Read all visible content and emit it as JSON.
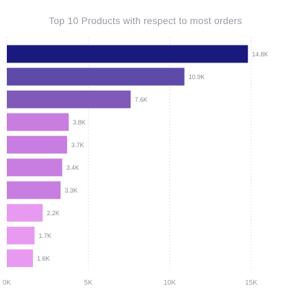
{
  "chart_data": {
    "type": "bar",
    "orientation": "horizontal",
    "title": "Top 10 Products with respect to most orders",
    "xlabel": "",
    "ylabel": "",
    "xlim": [
      0,
      15000
    ],
    "x_ticks": [
      {
        "value": 0,
        "label": "0K"
      },
      {
        "value": 5000,
        "label": "5K"
      },
      {
        "value": 10000,
        "label": "10K"
      },
      {
        "value": 15000,
        "label": "15K"
      }
    ],
    "grid": "vertical dotted",
    "legend": "none",
    "categories": [
      "",
      "",
      "",
      "",
      "",
      "",
      "",
      "",
      "",
      ""
    ],
    "values": [
      14800,
      10900,
      7600,
      3800,
      3700,
      3400,
      3300,
      2200,
      1700,
      1600
    ],
    "data_labels": [
      "14.8K",
      "10.9K",
      "7.6K",
      "3.8K",
      "3.7K",
      "3.4K",
      "3.3K",
      "2.2K",
      "1.7K",
      "1.6K"
    ],
    "colors": [
      "#1a1a7e",
      "#5e4aa8",
      "#7f5ab8",
      "#c77ee0",
      "#c77ee0",
      "#c77ee0",
      "#c77ee0",
      "#e79af0",
      "#e79af0",
      "#e79af0"
    ]
  }
}
